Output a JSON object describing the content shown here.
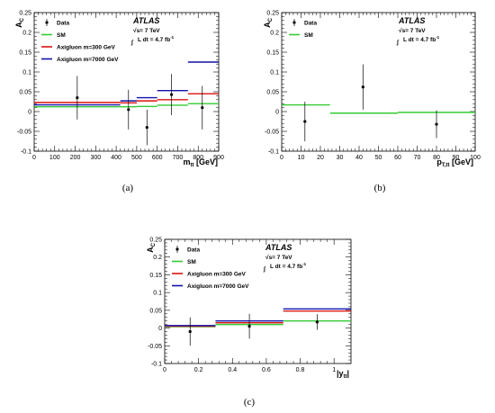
{
  "chart_data": [
    {
      "type": "scatter",
      "panel": "(a)",
      "ylabel": "A_C",
      "xlabel": "m_tt [GeV]",
      "xlim": [
        0,
        900
      ],
      "ylim": [
        -0.1,
        0.25
      ],
      "xticks": [
        0,
        100,
        200,
        300,
        400,
        500,
        600,
        700,
        800,
        900
      ],
      "yticks": [
        -0.1,
        -0.05,
        0,
        0.05,
        0.1,
        0.15,
        0.2,
        0.25
      ],
      "experiment": "ATLAS",
      "energy_text": "√s= 7 TeV",
      "lumi_text": "L dt = 4.7 fb⁻¹",
      "legend": [
        "Data",
        "SM",
        "Axigluon m=300 GeV",
        "Axigluon m=7000 GeV"
      ],
      "data_points": [
        {
          "x": 210,
          "y": 0.035,
          "err": 0.055
        },
        {
          "x": 460,
          "y": 0.005,
          "err": 0.05
        },
        {
          "x": 550,
          "y": -0.04,
          "err": 0.045
        },
        {
          "x": 670,
          "y": 0.043,
          "err": 0.052
        },
        {
          "x": 820,
          "y": 0.01,
          "err": 0.055
        }
      ],
      "bins": [
        0,
        420,
        500,
        600,
        750,
        900
      ],
      "series": [
        {
          "name": "SM",
          "color": "#33cc33",
          "values": [
            0.012,
            0.012,
            0.013,
            0.016,
            0.02
          ]
        },
        {
          "name": "Axigluon m=300 GeV",
          "color": "#dd1111",
          "values": [
            0.023,
            0.022,
            0.027,
            0.03,
            0.045
          ]
        },
        {
          "name": "Axigluon m=7000 GeV",
          "color": "#1111aa",
          "values": [
            0.017,
            0.027,
            0.035,
            0.053,
            0.125
          ]
        }
      ]
    },
    {
      "type": "scatter",
      "panel": "(b)",
      "ylabel": "A_C",
      "xlabel": "p_T,tt [GeV]",
      "xlim": [
        0,
        100
      ],
      "ylim": [
        -0.1,
        0.25
      ],
      "xticks": [
        0,
        10,
        20,
        30,
        40,
        50,
        60,
        70,
        80,
        90,
        100
      ],
      "yticks": [
        -0.1,
        -0.05,
        0,
        0.05,
        0.1,
        0.15,
        0.2,
        0.25
      ],
      "experiment": "ATLAS",
      "energy_text": "√s= 7 TeV",
      "lumi_text": "L dt = 4.7 fb⁻¹",
      "legend": [
        "Data",
        "SM"
      ],
      "data_points": [
        {
          "x": 12,
          "y": -0.025,
          "err": 0.05
        },
        {
          "x": 42,
          "y": 0.062,
          "err": 0.057
        },
        {
          "x": 80,
          "y": -0.032,
          "err": 0.035
        }
      ],
      "bins": [
        0,
        25,
        60,
        100
      ],
      "series": [
        {
          "name": "SM",
          "color": "#33cc33",
          "values": [
            0.017,
            -0.004,
            -0.002
          ]
        }
      ]
    },
    {
      "type": "scatter",
      "panel": "(c)",
      "ylabel": "A_C",
      "xlabel": "|y_tt|",
      "xlim": [
        0,
        1.1
      ],
      "ylim": [
        -0.1,
        0.25
      ],
      "xticks": [
        0,
        0.2,
        0.4,
        0.6,
        0.8,
        1
      ],
      "yticks": [
        -0.1,
        -0.05,
        0,
        0.05,
        0.1,
        0.15,
        0.2,
        0.25
      ],
      "experiment": "ATLAS",
      "energy_text": "√s= 7 TeV",
      "lumi_text": "L dt = 4.7 fb⁻¹",
      "legend": [
        "Data",
        "SM",
        "Axigluon m=300 GeV",
        "Axigluon m=7000 GeV"
      ],
      "data_points": [
        {
          "x": 0.15,
          "y": -0.01,
          "err": 0.04
        },
        {
          "x": 0.5,
          "y": 0.005,
          "err": 0.035
        },
        {
          "x": 0.9,
          "y": 0.017,
          "err": 0.022
        }
      ],
      "bins": [
        0,
        0.3,
        0.7,
        1.1
      ],
      "series": [
        {
          "name": "SM",
          "color": "#33cc33",
          "values": [
            0.004,
            0.01,
            0.02
          ]
        },
        {
          "name": "Axigluon m=300 GeV",
          "color": "#dd1111",
          "values": [
            0.005,
            0.015,
            0.048
          ]
        },
        {
          "name": "Axigluon m=7000 GeV",
          "color": "#1111aa",
          "values": [
            0.007,
            0.02,
            0.054
          ]
        }
      ]
    }
  ]
}
